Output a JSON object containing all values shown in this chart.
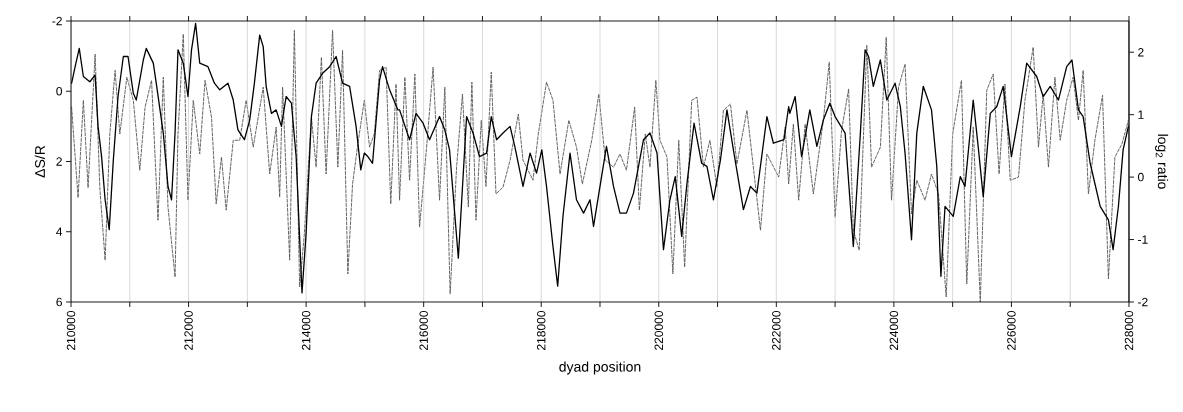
{
  "chart_data": {
    "type": "line",
    "xlabel": "dyad position",
    "ylabel": "ΔS/R",
    "y2label": "log$_{2}$ ratio",
    "xlim": [
      210000,
      228000
    ],
    "xticks": [
      210000,
      {
        "value": 211000,
        "label": null
      },
      212000,
      {
        "value": 213000,
        "label": null
      },
      214000,
      {
        "value": 215000,
        "label": null
      },
      216000,
      {
        "value": 217000,
        "label": null
      },
      218000,
      {
        "value": 219000,
        "label": null
      },
      220000,
      {
        "value": 221000,
        "label": null
      },
      222000,
      {
        "value": 223000,
        "label": null
      },
      224000,
      {
        "value": 225000,
        "label": null
      },
      226000,
      {
        "value": 227000,
        "label": null
      },
      228000
    ],
    "ylim": [
      6,
      -2
    ],
    "yticks": [
      -2,
      0,
      2,
      4,
      6
    ],
    "y2lim": [
      -2,
      2.5
    ],
    "y2ticks": [
      -2,
      -1,
      0,
      1,
      2
    ],
    "grid": "x",
    "series": [
      {
        "color": "#555555",
        "line_style": "dashed",
        "axis": "y2",
        "x": [
          210010,
          210120,
          210210,
          210290,
          210410,
          210490,
          210580,
          210660,
          210750,
          210830,
          210950,
          211060,
          211170,
          211260,
          211370,
          211480,
          211570,
          211650,
          211770,
          211820,
          211910,
          211990,
          212080,
          212190,
          212280,
          212390,
          212470,
          212560,
          212640,
          212760,
          212870,
          212980,
          213100,
          213270,
          213380,
          213490,
          213550,
          213600,
          213720,
          213800,
          213890,
          213970,
          214090,
          214170,
          214260,
          214340,
          214450,
          214540,
          214620,
          214710,
          214790,
          214880,
          214990,
          215080,
          215160,
          215250,
          215360,
          215440,
          215530,
          215590,
          215680,
          215760,
          215850,
          215930,
          216050,
          216160,
          216270,
          216360,
          216450,
          216560,
          216660,
          216760,
          216820,
          216890,
          216980,
          217060,
          217150,
          217230,
          217350,
          217470,
          217610,
          217690,
          217860,
          217950,
          218090,
          218200,
          218320,
          218470,
          218600,
          218700,
          218860,
          218980,
          219090,
          219230,
          219340,
          219450,
          219590,
          219670,
          219770,
          219850,
          219950,
          220020,
          220140,
          220240,
          220340,
          220440,
          220560,
          220650,
          220760,
          220870,
          220990,
          221100,
          221220,
          221330,
          221500,
          221730,
          221840,
          222040,
          222150,
          222210,
          222290,
          222380,
          222490,
          222630,
          222800,
          222900,
          223000,
          223110,
          223230,
          223310,
          223410,
          223540,
          223620,
          223770,
          223870,
          223960,
          224080,
          224190,
          224300,
          224390,
          224530,
          224640,
          224760,
          224890,
          225000,
          225150,
          225240,
          225350,
          225470,
          225580,
          225690,
          225790,
          225890,
          225980,
          226120,
          226230,
          226370,
          226460,
          226540,
          226630,
          226740,
          226830,
          226940,
          227050,
          227140,
          227220,
          227310,
          227420,
          227550,
          227650,
          227760,
          227880,
          227990
        ],
        "values": [
          1.12,
          -0.33,
          1.23,
          -0.17,
          1.97,
          -0.17,
          -1.33,
          0.69,
          1.71,
          0.69,
          1.6,
          1.23,
          0.11,
          1.12,
          1.55,
          -0.69,
          1.6,
          -0.48,
          -1.6,
          0.69,
          2.29,
          -0.37,
          1.23,
          0.37,
          1.55,
          0.96,
          -0.43,
          0.32,
          -0.53,
          0.59,
          0.59,
          1.23,
          0.48,
          1.44,
          0.05,
          0.8,
          -0.32,
          1.44,
          -1.33,
          2.35,
          -1.76,
          -0.91,
          0.96,
          0.16,
          1.92,
          0.05,
          2.35,
          0.16,
          2.03,
          -1.55,
          -0.11,
          0.53,
          1.23,
          0.48,
          0.69,
          1.71,
          1.76,
          -0.43,
          1.49,
          -0.37,
          1.6,
          -0.05,
          1.65,
          -0.8,
          0.48,
          1.76,
          -0.37,
          1.44,
          -1.87,
          0.16,
          1.33,
          -0.48,
          1.52,
          -0.69,
          0.91,
          -0.15,
          1.68,
          -0.27,
          -0.16,
          0.27,
          1.01,
          0.27,
          -0.05,
          0.69,
          1.52,
          1.23,
          0.05,
          0.91,
          0.48,
          -0.11,
          0.59,
          1.33,
          0.27,
          0.16,
          0.37,
          0.11,
          1.12,
          -0.53,
          0.69,
          0.16,
          1.55,
          0.59,
          0.32,
          -1.55,
          0.59,
          -1.44,
          1.23,
          1.28,
          0.16,
          0.59,
          -0.16,
          1.07,
          1.17,
          0.21,
          1.07,
          -0.85,
          0.37,
          0.0,
          0.8,
          -0.11,
          0.85,
          -0.37,
          0.85,
          -0.27,
          0.91,
          1.84,
          -0.64,
          0.75,
          1.41,
          -0.85,
          -1.17,
          2.11,
          0.16,
          0.48,
          2.24,
          -0.37,
          1.44,
          1.81,
          -0.59,
          -0.05,
          -0.37,
          0.05,
          -0.27,
          -1.92,
          0.69,
          1.55,
          -1.71,
          0.8,
          -2.0,
          1.39,
          1.65,
          0.05,
          1.49,
          -0.05,
          0.0,
          1.23,
          2.08,
          0.48,
          1.33,
          0.16,
          1.6,
          0.59,
          1.23,
          1.6,
          0.91,
          1.71,
          -0.27,
          0.59,
          1.31,
          -1.63,
          0.32,
          0.53,
          0.91
        ]
      },
      {
        "color": "#000000",
        "line_style": "solid",
        "x": [
          210010,
          210070,
          210140,
          210210,
          210320,
          210410,
          210460,
          210520,
          210580,
          210650,
          210720,
          210800,
          210890,
          210970,
          211060,
          211110,
          211230,
          211280,
          211400,
          211450,
          211570,
          211650,
          211710,
          211770,
          211820,
          211910,
          211990,
          212050,
          212120,
          212190,
          212330,
          212440,
          212530,
          212670,
          212760,
          212840,
          212950,
          213040,
          213120,
          213210,
          213270,
          213320,
          213410,
          213490,
          213580,
          213660,
          213750,
          213830,
          213930,
          214000,
          214090,
          214170,
          214280,
          214400,
          214510,
          214620,
          214740,
          214850,
          214930,
          214990,
          215050,
          215130,
          215250,
          215300,
          215420,
          215560,
          215590,
          215760,
          215870,
          215990,
          216100,
          216270,
          216360,
          216440,
          216590,
          216730,
          216840,
          216950,
          217070,
          217150,
          217240,
          217350,
          217470,
          217550,
          217690,
          217810,
          217920,
          218010,
          218090,
          218200,
          218280,
          218370,
          218490,
          218600,
          218720,
          218830,
          218890,
          219000,
          219110,
          219230,
          219340,
          219450,
          219570,
          219740,
          219850,
          219970,
          220080,
          220190,
          220280,
          220390,
          220480,
          220600,
          220730,
          220820,
          220930,
          221050,
          221160,
          221270,
          221440,
          221560,
          221670,
          221840,
          221950,
          222130,
          222210,
          222230,
          222320,
          222430,
          222570,
          222690,
          222800,
          222910,
          223000,
          223170,
          223310,
          223430,
          223510,
          223570,
          223650,
          223770,
          223880,
          224020,
          224110,
          224190,
          224300,
          224390,
          224500,
          224640,
          224730,
          224800,
          224870,
          225010,
          225130,
          225210,
          225350,
          225440,
          225520,
          225640,
          225750,
          225860,
          226000,
          226150,
          226260,
          226430,
          226540,
          226660,
          226800,
          226940,
          227030,
          227140,
          227220,
          227340,
          227510,
          227650,
          227730,
          227820,
          227900,
          227990
        ],
        "values": [
          -0.23,
          -0.7,
          -1.22,
          -0.42,
          -0.27,
          -0.46,
          1.0,
          1.86,
          3.09,
          3.94,
          1.95,
          0.15,
          -0.99,
          -0.99,
          0.06,
          0.25,
          -0.89,
          -1.22,
          -0.8,
          -0.23,
          1.19,
          2.71,
          3.09,
          1.19,
          -1.18,
          -0.8,
          0.15,
          -1.18,
          -1.93,
          -0.8,
          -0.7,
          -0.23,
          -0.04,
          -0.23,
          0.25,
          1.1,
          1.38,
          0.82,
          -0.23,
          -1.6,
          -1.27,
          -0.14,
          0.63,
          0.53,
          1.0,
          0.15,
          0.34,
          1.86,
          5.74,
          4.04,
          0.72,
          -0.23,
          -0.51,
          -0.7,
          -0.99,
          -0.23,
          -0.14,
          1.0,
          2.24,
          1.76,
          1.86,
          2.05,
          -0.32,
          -0.7,
          -0.04,
          0.53,
          0.53,
          1.38,
          0.63,
          0.91,
          1.38,
          0.72,
          1.1,
          1.67,
          4.75,
          0.72,
          1.19,
          1.86,
          1.76,
          0.72,
          1.38,
          1.19,
          1.0,
          1.57,
          2.71,
          1.76,
          2.33,
          1.67,
          2.71,
          4.42,
          5.55,
          3.56,
          1.76,
          3.09,
          3.47,
          3.09,
          3.85,
          2.71,
          1.57,
          2.71,
          3.47,
          3.47,
          2.9,
          1.38,
          1.19,
          1.76,
          4.51,
          3.09,
          2.43,
          4.13,
          2.62,
          0.91,
          2.05,
          2.14,
          3.09,
          1.95,
          0.53,
          1.67,
          3.37,
          2.71,
          2.9,
          0.72,
          1.48,
          1.38,
          0.44,
          0.63,
          0.15,
          1.86,
          0.53,
          1.57,
          0.82,
          0.34,
          0.72,
          1.19,
          4.42,
          1.19,
          -1.18,
          -0.99,
          -0.14,
          -0.89,
          0.25,
          -0.23,
          0.44,
          1.76,
          4.23,
          1.19,
          -0.14,
          0.53,
          2.14,
          5.27,
          3.28,
          3.56,
          2.43,
          2.71,
          0.25,
          1.67,
          3.0,
          0.63,
          0.44,
          -0.14,
          1.86,
          0.44,
          -0.8,
          -0.42,
          0.15,
          -0.14,
          0.25,
          -0.7,
          -0.89,
          0.53,
          0.72,
          2.05,
          3.28,
          3.66,
          4.51,
          3.28,
          1.67,
          1.0
        ]
      }
    ]
  }
}
